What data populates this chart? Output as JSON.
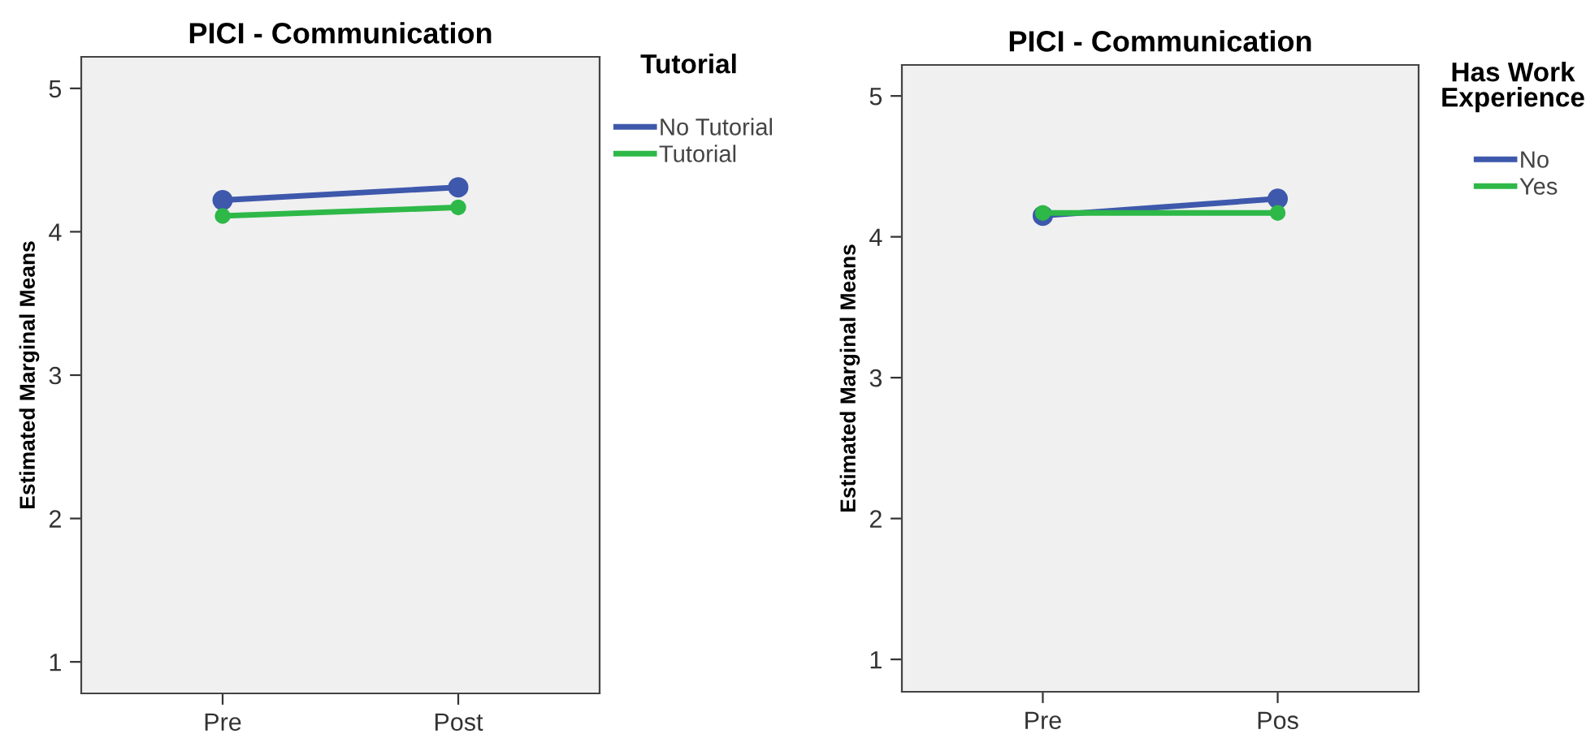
{
  "chart_data": [
    {
      "type": "line",
      "title": "PICI - Communication",
      "ylabel": "Estimated Marginal Means",
      "legend_title": "Tutorial",
      "categories": [
        "Pre",
        "Post"
      ],
      "ylim": [
        0.78,
        5.22
      ],
      "yticks": [
        1,
        2,
        3,
        4,
        5
      ],
      "grid": false,
      "legend": "top right",
      "marker": "circle",
      "line_style": "solid",
      "series": [
        {
          "name": "No Tutorial",
          "color": "#3e58ac",
          "values": [
            4.22,
            4.31
          ]
        },
        {
          "name": "Tutorial",
          "color": "#2eb848",
          "values": [
            4.11,
            4.17
          ]
        }
      ]
    },
    {
      "type": "line",
      "title": "PICI - Communication",
      "ylabel": "Estimated Marginal Means",
      "legend_title": "Has Work Experience",
      "categories": [
        "Pre",
        "Pos"
      ],
      "ylim": [
        0.77,
        5.22
      ],
      "yticks": [
        1,
        2,
        3,
        4,
        5
      ],
      "grid": false,
      "legend": "top right",
      "marker": "circle",
      "line_style": "solid",
      "series": [
        {
          "name": "No",
          "color": "#3e58ac",
          "values": [
            4.15,
            4.27
          ]
        },
        {
          "name": "Yes",
          "color": "#2eb848",
          "values": [
            4.17,
            4.17
          ]
        }
      ]
    }
  ]
}
